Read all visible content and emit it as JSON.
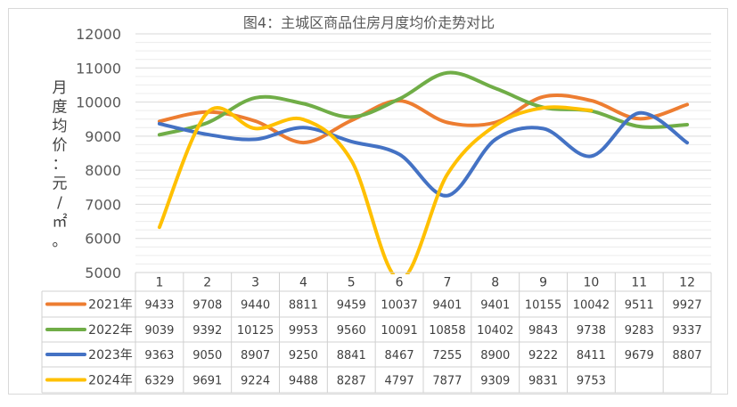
{
  "chart_data": {
    "type": "line",
    "title": "图4：主城区商品住房月度均价走势对比",
    "ylabel": "月度均价：元/㎡。",
    "xlabel": "",
    "ylim": [
      5000,
      12000
    ],
    "yticks": [
      5000,
      6000,
      7000,
      8000,
      9000,
      10000,
      11000,
      12000
    ],
    "categories": [
      "1",
      "2",
      "3",
      "4",
      "5",
      "6",
      "7",
      "8",
      "9",
      "10",
      "11",
      "12"
    ],
    "grid": "horizontal",
    "legend": "data-table",
    "series": [
      {
        "name": "2021年",
        "color": "#ED7D31",
        "values": [
          9433,
          9708,
          9440,
          8811,
          9459,
          10037,
          9401,
          9401,
          10155,
          10042,
          9511,
          9927
        ]
      },
      {
        "name": "2022年",
        "color": "#70AD47",
        "values": [
          9039,
          9392,
          10125,
          9953,
          9560,
          10091,
          10858,
          10402,
          9843,
          9738,
          9283,
          9337
        ]
      },
      {
        "name": "2023年",
        "color": "#4472C4",
        "values": [
          9363,
          9050,
          8907,
          9250,
          8841,
          8467,
          7255,
          8900,
          9222,
          8411,
          9679,
          8807
        ]
      },
      {
        "name": "2024年",
        "color": "#FFC000",
        "values": [
          6329,
          9691,
          9224,
          9488,
          8287,
          4797,
          7877,
          9309,
          9831,
          9753,
          null,
          null
        ]
      }
    ]
  }
}
